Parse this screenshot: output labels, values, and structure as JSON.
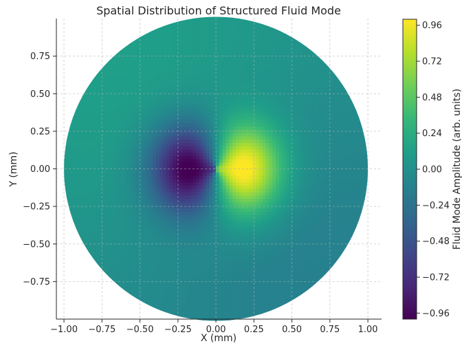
{
  "chart_data": {
    "type": "heatmap",
    "title": "Spatial Distribution of Structured Fluid Mode",
    "xlabel": "X (mm)",
    "ylabel": "Y (mm)",
    "colorbar_label": "Fluid Mode Amplitude (arb. units)",
    "colormap": "viridis",
    "colormap_stops": [
      "#440154",
      "#482878",
      "#3e4989",
      "#31688e",
      "#26828e",
      "#1f9e89",
      "#35b779",
      "#6ece58",
      "#b5de2b",
      "#fde725"
    ],
    "domain": "unit disk, radius 1.0 mm",
    "field": "amplitude = r * cos(theta) / max(|.|) style dipole centered at origin: positive (yellow) lobe toward +x, negative (purple) lobe toward -x, decaying to near 0 at the rim with a phase gradient",
    "xlim": [
      -1.05,
      1.09
    ],
    "ylim": [
      -1.0,
      1.0
    ],
    "x_ticks": [
      "−1.00",
      "−0.75",
      "−0.50",
      "−0.25",
      "0.00",
      "0.25",
      "0.50",
      "0.75",
      "1.00"
    ],
    "x_tick_values": [
      -1.0,
      -0.75,
      -0.5,
      -0.25,
      0.0,
      0.25,
      0.5,
      0.75,
      1.0
    ],
    "y_ticks": [
      "0.75",
      "0.50",
      "0.25",
      "0.00",
      "−0.25",
      "−0.50",
      "−0.75"
    ],
    "y_tick_values": [
      0.75,
      0.5,
      0.25,
      0.0,
      -0.25,
      -0.5,
      -0.75
    ],
    "colorbar_ticks": [
      "0.96",
      "0.72",
      "0.48",
      "0.24",
      "0.00",
      "−0.24",
      "−0.48",
      "−0.72",
      "−0.96"
    ],
    "colorbar_tick_values": [
      0.96,
      0.72,
      0.48,
      0.24,
      0.0,
      -0.24,
      -0.48,
      -0.72,
      -0.96
    ],
    "colorbar_range": [
      -1.0,
      1.0
    ],
    "grid": true
  }
}
